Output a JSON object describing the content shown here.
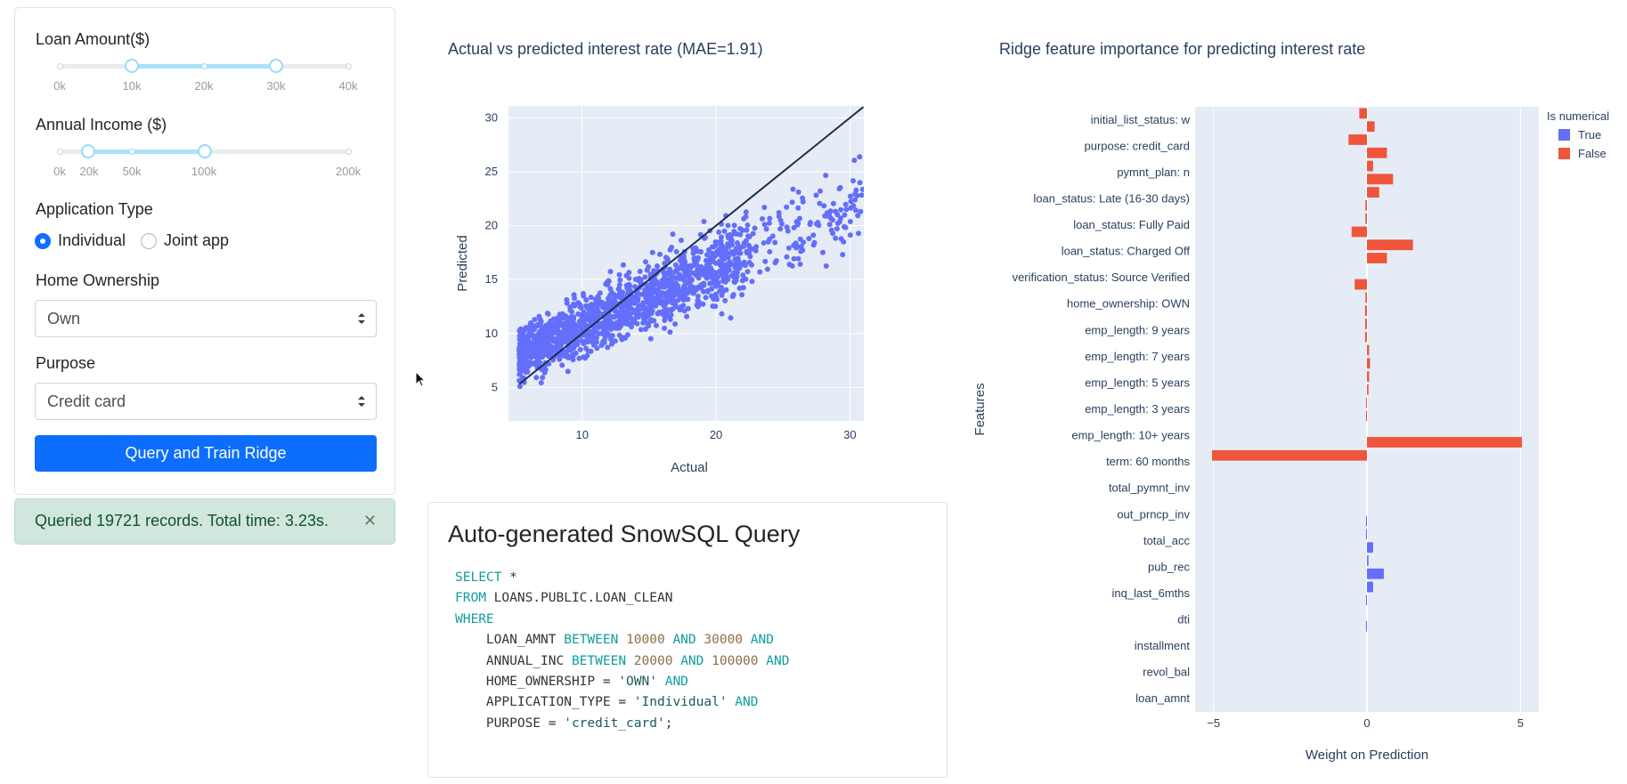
{
  "controls": {
    "loan_amount": {
      "label": "Loan Amount($)",
      "marks": [
        "0k",
        "10k",
        "20k",
        "30k",
        "40k"
      ],
      "range": [
        10000,
        30000
      ]
    },
    "annual_income": {
      "label": "Annual Income ($)",
      "marks": [
        "0k",
        "20k",
        "50k",
        "100k",
        "200k"
      ],
      "range": [
        20000,
        100000
      ]
    },
    "application_type": {
      "label": "Application Type",
      "options": [
        "Individual",
        "Joint app"
      ],
      "selected": "Individual"
    },
    "home_ownership": {
      "label": "Home Ownership",
      "value": "Own"
    },
    "purpose": {
      "label": "Purpose",
      "value": "Credit card"
    },
    "button_label": "Query and Train Ridge"
  },
  "alert": {
    "text": "Queried 19721 records. Total time: 3.23s.",
    "close": "✕"
  },
  "query_card": {
    "title": "Auto-generated SnowSQL Query",
    "lines": [
      [
        [
          "kw",
          "SELECT"
        ],
        [
          "t",
          " *"
        ]
      ],
      [
        [
          "kw",
          "FROM"
        ],
        [
          "t",
          " LOANS.PUBLIC.LOAN_CLEAN"
        ]
      ],
      [
        [
          "kw",
          "WHERE"
        ]
      ],
      [
        [
          "t",
          "    LOAN_AMNT "
        ],
        [
          "kw",
          "BETWEEN"
        ],
        [
          "t",
          " "
        ],
        [
          "num",
          "10000"
        ],
        [
          "t",
          " "
        ],
        [
          "kw",
          "AND"
        ],
        [
          "t",
          " "
        ],
        [
          "num",
          "30000"
        ],
        [
          "t",
          " "
        ],
        [
          "kw",
          "AND"
        ]
      ],
      [
        [
          "t",
          "    ANNUAL_INC "
        ],
        [
          "kw",
          "BETWEEN"
        ],
        [
          "t",
          " "
        ],
        [
          "num",
          "20000"
        ],
        [
          "t",
          " "
        ],
        [
          "kw",
          "AND"
        ],
        [
          "t",
          " "
        ],
        [
          "num",
          "100000"
        ],
        [
          "t",
          " "
        ],
        [
          "kw",
          "AND"
        ]
      ],
      [
        [
          "t",
          "    HOME_OWNERSHIP = "
        ],
        [
          "str",
          "'OWN'"
        ],
        [
          "t",
          " "
        ],
        [
          "kw",
          "AND"
        ]
      ],
      [
        [
          "t",
          "    APPLICATION_TYPE = "
        ],
        [
          "str",
          "'Individual'"
        ],
        [
          "t",
          " "
        ],
        [
          "kw",
          "AND"
        ]
      ],
      [
        [
          "t",
          "    PURPOSE = "
        ],
        [
          "str",
          "'credit_card'"
        ],
        [
          "t",
          ";"
        ]
      ]
    ]
  },
  "chart_data": [
    {
      "type": "scatter",
      "title": "Actual vs predicted interest rate (MAE=1.91)",
      "xlabel": "Actual",
      "ylabel": "Predicted",
      "xlim": [
        4.5,
        31.5
      ],
      "ylim": [
        1.9,
        31.1
      ],
      "xticks": [
        10,
        20,
        30
      ],
      "yticks": [
        5,
        10,
        15,
        20,
        25,
        30
      ],
      "grid": true,
      "reference_line": {
        "from": [
          5.3,
          5.3
        ],
        "to": [
          31,
          31
        ]
      },
      "n_points_drawn": 1600,
      "point_cloud": {
        "x_range": [
          5.3,
          31
        ],
        "trend": "predicted ≈ 5.2 + 0.55 × actual",
        "spread": 1.6
      },
      "color": "#636efa"
    },
    {
      "type": "bar",
      "orientation": "horizontal",
      "title": "Ridge feature importance for predicting interest rate",
      "xlabel": "Weight on Prediction",
      "ylabel": "Features",
      "xlim": [
        -5.6,
        5.6
      ],
      "xticks": [
        -5,
        0,
        5
      ],
      "legend": {
        "title": "Is numerical",
        "position": "top-right",
        "entries": [
          {
            "name": "True",
            "color": "#636efa"
          },
          {
            "name": "False",
            "color": "#ef553b"
          }
        ]
      },
      "categories": [
        "initial_list_status: w",
        "purpose: credit_card",
        "pymnt_plan: n",
        "loan_status: Late (16-30 days)",
        "loan_status: Fully Paid",
        "loan_status: Charged Off",
        "verification_status: Source Verified",
        "home_ownership: OWN",
        "emp_length: 9 years",
        "emp_length: 7 years",
        "emp_length: 5 years",
        "emp_length: 3 years",
        "emp_length: 10+ years",
        "term:  60 months",
        "total_pymnt_inv",
        "out_prncp_inv",
        "total_acc",
        "pub_rec",
        "inq_last_6mths",
        "dti",
        "installment",
        "revol_bal",
        "loan_amnt"
      ],
      "bars": [
        {
          "v": -0.25,
          "n": false
        },
        {
          "v": 0.25,
          "n": false
        },
        {
          "v": -0.6,
          "n": false
        },
        {
          "v": 0.65,
          "n": false
        },
        {
          "v": 0.2,
          "n": false
        },
        {
          "v": 0.85,
          "n": false
        },
        {
          "v": 0.4,
          "n": false
        },
        {
          "v": -0.05,
          "n": false
        },
        {
          "v": -0.05,
          "n": false
        },
        {
          "v": -0.5,
          "n": false
        },
        {
          "v": 1.5,
          "n": false
        },
        {
          "v": 0.65,
          "n": false
        },
        {
          "v": 0.0,
          "n": false
        },
        {
          "v": -0.4,
          "n": false
        },
        {
          "v": -0.05,
          "n": false
        },
        {
          "v": -0.06,
          "n": false
        },
        {
          "v": -0.06,
          "n": false
        },
        {
          "v": -0.06,
          "n": false
        },
        {
          "v": 0.07,
          "n": false
        },
        {
          "v": 0.1,
          "n": false
        },
        {
          "v": 0.07,
          "n": false
        },
        {
          "v": 0.05,
          "n": false
        },
        {
          "v": -0.03,
          "n": false
        },
        {
          "v": -0.03,
          "n": false
        },
        {
          "v": 0.0,
          "n": false
        },
        {
          "v": 5.05,
          "n": false
        },
        {
          "v": -5.05,
          "n": false
        },
        {
          "v": 0.0,
          "n": true
        },
        {
          "v": 0.0,
          "n": true
        },
        {
          "v": 0.0,
          "n": true
        },
        {
          "v": 0.0,
          "n": true
        },
        {
          "v": -0.03,
          "n": true
        },
        {
          "v": -0.03,
          "n": true
        },
        {
          "v": 0.2,
          "n": true
        },
        {
          "v": 0.05,
          "n": true
        },
        {
          "v": 0.55,
          "n": true
        },
        {
          "v": 0.2,
          "n": true
        },
        {
          "v": -0.03,
          "n": true
        },
        {
          "v": 0.0,
          "n": true
        },
        {
          "v": -0.03,
          "n": true
        },
        {
          "v": 0.0,
          "n": true
        },
        {
          "v": 0.0,
          "n": true
        },
        {
          "v": 0.0,
          "n": true
        },
        {
          "v": 0.0,
          "n": true
        },
        {
          "v": 0.0,
          "n": true
        },
        {
          "v": 0.0,
          "n": true
        }
      ]
    }
  ]
}
